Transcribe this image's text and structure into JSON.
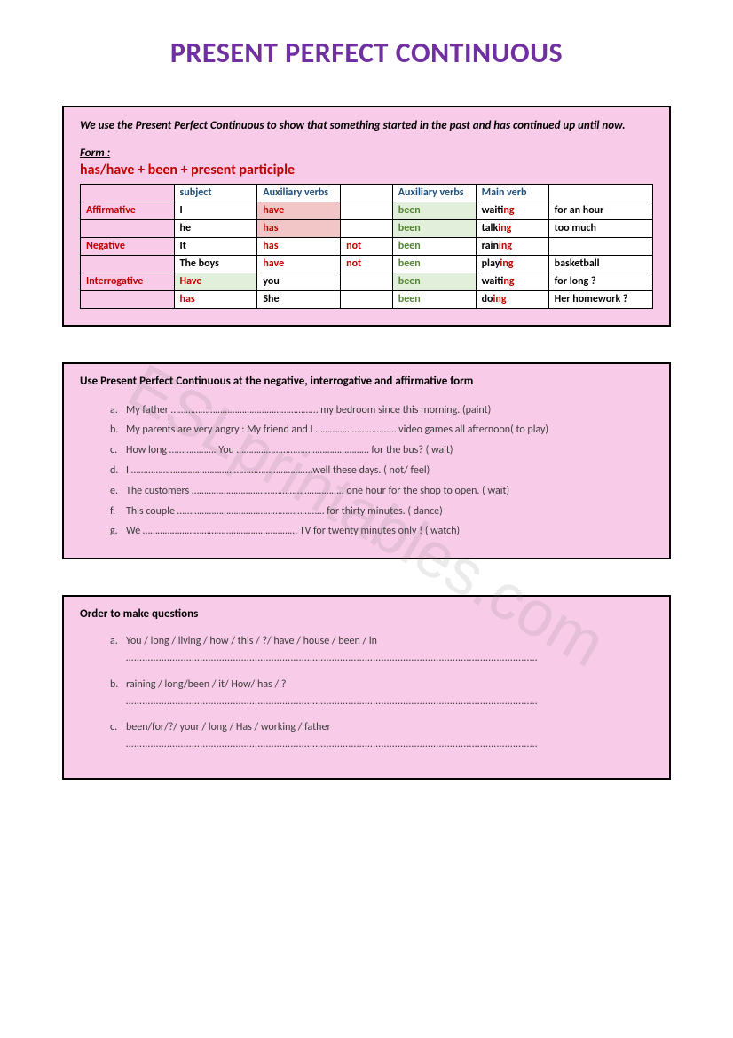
{
  "title": "PRESENT PERFECT CONTINUOUS",
  "watermark": "ESLprintables.com",
  "box1": {
    "intro": "We use the Present Perfect Continuous to show that something started in the past and has continued up until now.",
    "form_label": "Form :",
    "form_text": "has/have + been + present participle",
    "headers": {
      "subject": "subject",
      "aux1": "Auxiliary verbs",
      "aux2": "Auxiliary verbs",
      "main": "Main verb"
    },
    "rows": [
      {
        "label": "Affirmative",
        "subject": "I",
        "aux1": "have",
        "not": "",
        "been": "been",
        "stem": "wait",
        "ing": "ing",
        "obj": "for an hour",
        "aux1_bg": "cell-pink",
        "been_bg": "cell-lightgreen"
      },
      {
        "label": "",
        "subject": "he",
        "aux1": "has",
        "not": "",
        "been": "been",
        "stem": "talk",
        "ing": "ing",
        "obj": "too much",
        "aux1_bg": "cell-pink",
        "been_bg": "cell-lightgreen"
      },
      {
        "label": "Negative",
        "subject": "It",
        "aux1": "has",
        "not": "not",
        "been": "been",
        "stem": "rain",
        "ing": "ing",
        "obj": "",
        "aux1_bg": "",
        "been_bg": ""
      },
      {
        "label": "",
        "subject": "The boys",
        "aux1": "have",
        "not": "not",
        "been": "been",
        "stem": "play",
        "ing": "ing",
        "obj": "basketball",
        "aux1_bg": "",
        "been_bg": ""
      },
      {
        "label": "Interrogative",
        "subject": "you",
        "aux1": "Have",
        "not": "",
        "been": "been",
        "stem": "wait",
        "ing": "ing",
        "obj": "for long ?",
        "aux1_bg": "cell-lightgreen",
        "been_bg": "cell-lightgreen",
        "swap": true
      },
      {
        "label": "",
        "subject": "She",
        "aux1": "has",
        "not": "",
        "been": "been",
        "stem": "do",
        "ing": "ing",
        "obj": "Her homework ?",
        "aux1_bg": "",
        "been_bg": "",
        "swap": true
      }
    ]
  },
  "box2": {
    "title": "Use Present Perfect Continuous at the negative, interrogative and affirmative form",
    "items": [
      {
        "l": "a.",
        "t": "My father …………………………………………………… my bedroom since this morning. (paint)"
      },
      {
        "l": "b.",
        "t": "My parents are very angry :  My friend and I ……………………………  video games all afternoon( to play)"
      },
      {
        "l": "c.",
        "t": "How long ………………. You ……………………………………………… for the bus? ( wait)"
      },
      {
        "l": "d.",
        "t": "I ………………………………………………………………..well these days. ( not/ feel)"
      },
      {
        "l": "e.",
        "t": "The customers …………………………………………………….. one hour for the shop to open. ( wait)"
      },
      {
        "l": "f.",
        "t": "This couple …………………………………………………… for thirty minutes. ( dance)"
      },
      {
        "l": "g.",
        "t": "We ……………………………………………………… TV for twenty minutes only ! ( watch)"
      }
    ]
  },
  "box3": {
    "title": "Order to make questions",
    "items": [
      {
        "l": "a.",
        "t": "You / long / living / how / this / ?/ have / house / been / in"
      },
      {
        "l": "b.",
        "t": "raining / long/been / it/ How/ has / ?"
      },
      {
        "l": "c.",
        "t": "been/for/?/ your / long / Has / working / father"
      }
    ],
    "dotline": "……………………………………………………………………………………………………………………………………"
  }
}
